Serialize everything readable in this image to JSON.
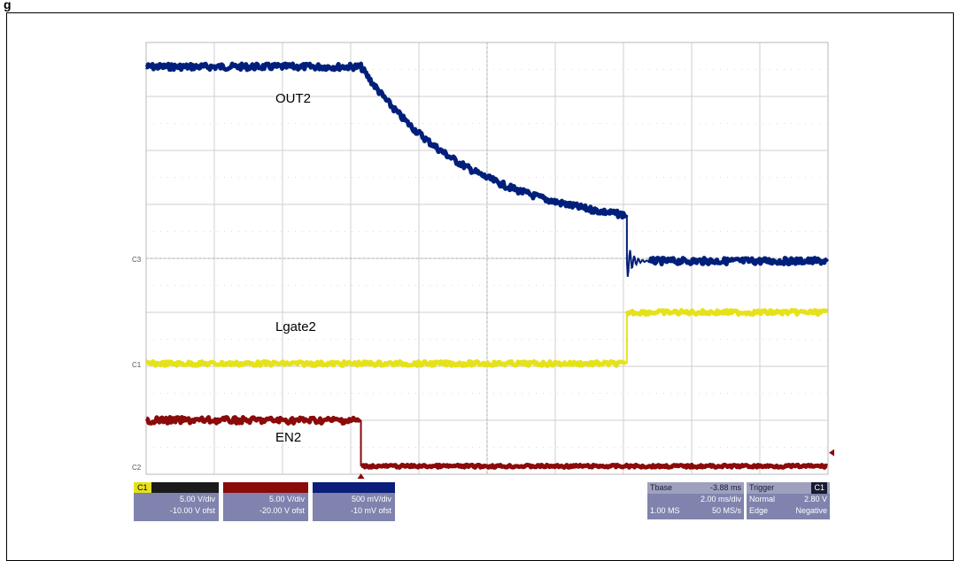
{
  "figure_label": "g",
  "chart_data": {
    "type": "line",
    "title": "",
    "grid": true,
    "x_divisions": 10,
    "y_divisions": 8,
    "series": [
      {
        "name": "OUT2",
        "color": "#001f7a"
      },
      {
        "name": "Lgate2",
        "color": "#e6e21a"
      },
      {
        "name": "EN2",
        "color": "#8b0a0a"
      }
    ],
    "channel_markers": {
      "c3": "C3",
      "c1": "C1",
      "c2": "C2"
    }
  },
  "channels": [
    {
      "tag": "C1",
      "tag_color": "#e6e21a",
      "bar_color": "#1b1b1b",
      "volts_div": "5.00 V/div",
      "offset": "-10.00 V ofst"
    },
    {
      "tag": "",
      "tag_color": "#8b0a0a",
      "bar_color": "#8b0a0a",
      "volts_div": "5.00 V/div",
      "offset": "-20.00 V ofst"
    },
    {
      "tag": "",
      "tag_color": "#0a1e7a",
      "bar_color": "#0a1e7a",
      "volts_div": "500 mV/div",
      "offset": "-10 mV ofst"
    }
  ],
  "timebase": {
    "label": "Tbase",
    "position": "-3.88 ms",
    "rate": "2.00 ms/div",
    "samples": "1.00 MS",
    "sample_rate": "50 MS/s"
  },
  "trigger": {
    "label": "Trigger",
    "badge": "C1",
    "mode": "Normal",
    "level": "2.80 V",
    "type": "Edge",
    "slope": "Negative"
  }
}
